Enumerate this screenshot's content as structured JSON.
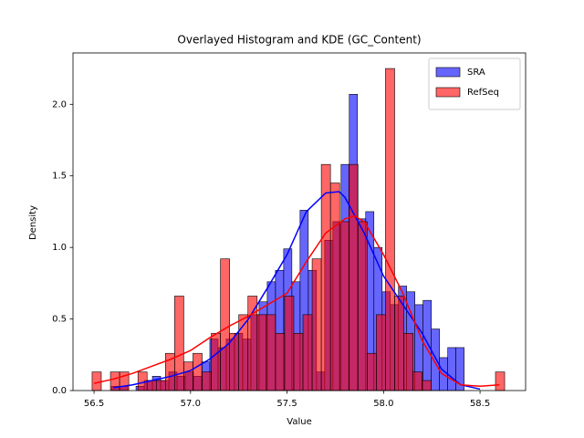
{
  "chart_data": {
    "type": "histogram",
    "title": "Overlayed Histogram and KDE (GC_Content)",
    "xlabel": "Value",
    "ylabel": "Density",
    "xlim": [
      56.391,
      58.736
    ],
    "ylim": [
      0,
      2.359
    ],
    "xticks": [
      56.5,
      {
        "value": 57,
        "label": "57.0"
      },
      57.5,
      {
        "value": 58,
        "label": "58.0"
      },
      58.5
    ],
    "yticks": [
      {
        "value": 0,
        "label": "0.0"
      },
      0.5,
      {
        "value": 1,
        "label": "1.0"
      },
      1.5,
      {
        "value": 2,
        "label": "2.0"
      }
    ],
    "legend": "upper right",
    "series": [
      {
        "name": "SRA",
        "color": "blue",
        "bins": [
          56.59,
          56.6325,
          56.675,
          56.7175,
          56.76,
          56.8025,
          56.845,
          56.8875,
          56.93,
          56.9725,
          57.015,
          57.0575,
          57.1,
          57.1425,
          57.185,
          57.2275,
          57.27,
          57.3125,
          57.355,
          57.3975,
          57.44,
          57.4825,
          57.525,
          57.5675,
          57.61,
          57.6525,
          57.695,
          57.7375,
          57.78,
          57.8225,
          57.865,
          57.9075,
          57.95,
          57.9925,
          58.035,
          58.0775,
          58.12,
          58.1625,
          58.205,
          58.2475,
          58.29,
          58.3325,
          58.375,
          58.4175
        ],
        "values": [
          0.03,
          0.03,
          0,
          0.03,
          0.07,
          0.1,
          0.07,
          0.13,
          0.1,
          0.13,
          0.1,
          0.2,
          0.36,
          0.3,
          0.36,
          0.4,
          0.36,
          0.53,
          0.62,
          0.76,
          0.84,
          0.99,
          0.76,
          1.26,
          0.84,
          0.13,
          1.05,
          1.18,
          1.58,
          2.07,
          1.2,
          1.25,
          1.0,
          0.69,
          0.6,
          0.73,
          0.69,
          0.6,
          0.63,
          0.43,
          0.23,
          0.3,
          0.3
        ],
        "kde": {
          "x": [
            56.6,
            56.7,
            56.8,
            56.9,
            57.0,
            57.1,
            57.2,
            57.3,
            57.4,
            57.5,
            57.6,
            57.7,
            57.77,
            57.8,
            57.9,
            58.0,
            58.1,
            58.2,
            58.3,
            58.4,
            58.5
          ],
          "values": [
            0.02,
            0.04,
            0.07,
            0.1,
            0.14,
            0.22,
            0.33,
            0.5,
            0.72,
            0.95,
            1.25,
            1.38,
            1.39,
            1.35,
            1.1,
            0.8,
            0.6,
            0.4,
            0.15,
            0.04,
            0.01
          ]
        }
      },
      {
        "name": "RefSeq",
        "color": "red",
        "bins": [
          56.49,
          56.5375,
          56.585,
          56.6325,
          56.68,
          56.7275,
          56.775,
          56.8225,
          56.87,
          56.9175,
          56.965,
          57.0125,
          57.06,
          57.1075,
          57.155,
          57.2025,
          57.25,
          57.2975,
          57.345,
          57.3925,
          57.44,
          57.4875,
          57.535,
          57.5825,
          57.63,
          57.6775,
          57.725,
          57.7725,
          57.82,
          57.8675,
          57.915,
          57.9625,
          58.01,
          58.0575,
          58.105,
          58.1525,
          58.2,
          58.2475,
          58.295,
          58.3425,
          58.39,
          58.4375,
          58.485,
          58.5325,
          58.58,
          58.6275
        ],
        "values": [
          0.13,
          0,
          0.13,
          0.13,
          0,
          0.13,
          0.07,
          0.07,
          0.26,
          0.66,
          0.2,
          0.26,
          0.13,
          0.4,
          0.92,
          0.4,
          0.53,
          0.66,
          0.53,
          0.53,
          0.4,
          0.66,
          0.4,
          0.53,
          0.92,
          1.58,
          1.45,
          1.18,
          1.58,
          1.18,
          0.26,
          0.53,
          2.25,
          0.66,
          0.4,
          0.13,
          0.07,
          0,
          0,
          0,
          0,
          0,
          0,
          0,
          0.13
        ],
        "kde": {
          "x": [
            56.5,
            56.6,
            56.7,
            56.8,
            56.9,
            57.0,
            57.1,
            57.2,
            57.3,
            57.4,
            57.5,
            57.6,
            57.7,
            57.8,
            57.85,
            57.9,
            58.0,
            58.1,
            58.2,
            58.3,
            58.4,
            58.5,
            58.6
          ],
          "values": [
            0.05,
            0.08,
            0.12,
            0.17,
            0.22,
            0.28,
            0.37,
            0.45,
            0.52,
            0.6,
            0.68,
            0.9,
            1.1,
            1.2,
            1.22,
            1.18,
            0.95,
            0.68,
            0.35,
            0.12,
            0.04,
            0.03,
            0.04
          ]
        }
      }
    ]
  }
}
